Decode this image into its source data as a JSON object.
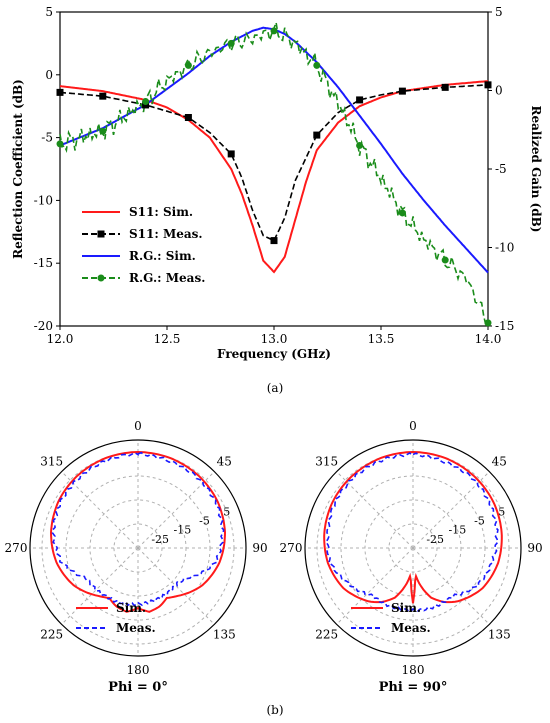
{
  "colors": {
    "sim_s11": "#ff1a1a",
    "meas_s11": "#000000",
    "sim_rg": "#1a1aff",
    "meas_rg": "#1a8c1a",
    "grid": "#b0b0b0"
  },
  "chart_data": [
    {
      "type": "line",
      "panel_label": "(a)",
      "xlabel": "Frequency (GHz)",
      "ylabel": "Reflection Coefficient (dB)",
      "y2label": "Realized Gain (dB)",
      "xlim": [
        12.0,
        14.0
      ],
      "ylim": [
        -20,
        5
      ],
      "y2lim": [
        -15,
        5
      ],
      "xticks": [
        "12.0",
        "12.5",
        "13.0",
        "13.5",
        "14.0"
      ],
      "yticks": [
        "5",
        "0",
        "-5",
        "-10",
        "-15",
        "-20"
      ],
      "y2ticks": [
        "0",
        "-5",
        "-10",
        "-15"
      ],
      "legend_position": "lower-left",
      "series": [
        {
          "name": "S11: Sim.",
          "axis": "left",
          "style": "solid",
          "x": [
            12.0,
            12.2,
            12.4,
            12.5,
            12.6,
            12.7,
            12.8,
            12.85,
            12.9,
            12.95,
            13.0,
            13.05,
            13.1,
            13.15,
            13.2,
            13.3,
            13.4,
            13.5,
            13.6,
            13.8,
            14.0
          ],
          "values": [
            -0.9,
            -1.3,
            -2.0,
            -2.6,
            -3.6,
            -5.0,
            -7.5,
            -9.5,
            -12.0,
            -14.8,
            -15.7,
            -14.5,
            -11.5,
            -8.5,
            -6.0,
            -3.8,
            -2.5,
            -1.8,
            -1.3,
            -0.8,
            -0.5
          ]
        },
        {
          "name": "S11: Meas.",
          "axis": "left",
          "style": "dashed-square",
          "x": [
            12.0,
            12.2,
            12.4,
            12.5,
            12.6,
            12.7,
            12.8,
            12.85,
            12.9,
            12.95,
            13.0,
            13.05,
            13.1,
            13.2,
            13.3,
            13.4,
            13.5,
            13.6,
            13.8,
            14.0
          ],
          "values": [
            -1.4,
            -1.7,
            -2.4,
            -2.9,
            -3.4,
            -4.6,
            -6.3,
            -8.2,
            -10.8,
            -12.8,
            -13.2,
            -11.4,
            -8.4,
            -4.8,
            -3.0,
            -2.0,
            -1.6,
            -1.3,
            -1.0,
            -0.8
          ],
          "markers_x": [
            12.0,
            12.2,
            12.4,
            12.6,
            12.8,
            13.0,
            13.2,
            13.4,
            13.6,
            13.8,
            14.0
          ]
        },
        {
          "name": "R.G.: Sim.",
          "axis": "right",
          "style": "solid",
          "x": [
            12.0,
            12.2,
            12.4,
            12.6,
            12.7,
            12.8,
            12.9,
            12.95,
            13.0,
            13.05,
            13.1,
            13.2,
            13.3,
            13.4,
            13.5,
            13.6,
            13.7,
            13.8,
            13.9,
            14.0
          ],
          "values": [
            -3.5,
            -2.4,
            -0.9,
            1.1,
            2.2,
            3.1,
            3.8,
            4.0,
            3.9,
            3.6,
            3.1,
            1.8,
            0.2,
            -1.6,
            -3.4,
            -5.3,
            -7.0,
            -8.6,
            -10.1,
            -11.6
          ]
        },
        {
          "name": "R.G.: Meas.",
          "axis": "right",
          "style": "dashed-circle",
          "x": [
            12.0,
            12.1,
            12.2,
            12.3,
            12.4,
            12.5,
            12.6,
            12.7,
            12.8,
            12.9,
            12.95,
            13.0,
            13.05,
            13.1,
            13.2,
            13.3,
            13.4,
            13.5,
            13.6,
            13.7,
            13.8,
            13.9,
            14.0
          ],
          "values": [
            -3.4,
            -3.0,
            -2.6,
            -1.7,
            -0.7,
            0.6,
            1.6,
            2.4,
            3.0,
            3.3,
            3.6,
            3.8,
            3.5,
            3.0,
            1.6,
            -0.8,
            -3.5,
            -5.6,
            -7.8,
            -9.5,
            -10.8,
            -12.0,
            -14.8
          ],
          "markers_x": [
            12.0,
            12.2,
            12.4,
            12.6,
            12.8,
            13.0,
            13.2,
            13.4,
            13.6,
            13.8,
            14.0
          ]
        }
      ]
    },
    {
      "type": "polar",
      "panel_label": "(b)",
      "title": "Phi = 0°",
      "angle_labels": [
        "0",
        "45",
        "90",
        "135",
        "180",
        "225",
        "270",
        "315"
      ],
      "radial_ticks": [
        "-25",
        "-15",
        "-5",
        "5"
      ],
      "rlim": [
        -35,
        10
      ],
      "legend_position": "lower-left",
      "series": [
        {
          "name": "Sim.",
          "style": "solid",
          "angles": [
            0,
            20,
            40,
            60,
            80,
            100,
            120,
            140,
            150,
            160,
            170,
            180,
            190,
            200,
            210,
            220,
            240,
            260,
            280,
            300,
            320,
            340
          ],
          "values": [
            5,
            4.8,
            4.3,
            3.4,
            1.8,
            -0.5,
            -4.0,
            -9.0,
            -11.0,
            -9.0,
            -8.0,
            -10.0,
            -8.0,
            -9.0,
            -11.0,
            -9.0,
            -4.0,
            -0.5,
            1.8,
            3.4,
            4.3,
            4.8
          ]
        },
        {
          "name": "Meas.",
          "style": "dashed",
          "angles": [
            0,
            20,
            40,
            60,
            80,
            100,
            115,
            120,
            130,
            240,
            245,
            260,
            280,
            300,
            320,
            340
          ],
          "values": [
            4.2,
            3.5,
            3.4,
            2.6,
            0.8,
            -2.0,
            -8.0,
            -10.5,
            -13.0,
            -10.0,
            -8.0,
            -2.5,
            0.8,
            2.5,
            3.2,
            3.8
          ]
        }
      ]
    },
    {
      "type": "polar",
      "panel_label": "(b)",
      "title": "Phi = 90°",
      "angle_labels": [
        "0",
        "45",
        "90",
        "135",
        "180",
        "225",
        "270",
        "315"
      ],
      "radial_ticks": [
        "-25",
        "-15",
        "-5",
        "5"
      ],
      "rlim": [
        -35,
        10
      ],
      "legend_position": "lower-left",
      "series": [
        {
          "name": "Sim.",
          "style": "solid",
          "angles": [
            0,
            20,
            40,
            60,
            80,
            100,
            120,
            140,
            150,
            160,
            170,
            175,
            180,
            185,
            190,
            200,
            210,
            220,
            240,
            260,
            280,
            300,
            320,
            340
          ],
          "values": [
            5,
            4.8,
            4.3,
            3.6,
            2.5,
            1.0,
            -1.5,
            -6.0,
            -9.0,
            -13.0,
            -20.0,
            -24.0,
            -12.0,
            -24.0,
            -20.0,
            -13.0,
            -9.0,
            -6.0,
            -1.5,
            1.0,
            2.5,
            3.6,
            4.3,
            4.8
          ]
        },
        {
          "name": "Meas.",
          "style": "dashed",
          "angles": [
            0,
            20,
            40,
            60,
            80,
            100,
            120,
            140,
            220,
            240,
            260,
            280,
            300,
            320,
            340
          ],
          "values": [
            4.0,
            3.2,
            3.2,
            2.0,
            0.5,
            -1.5,
            -4.0,
            -9.0,
            -9.0,
            -4.5,
            0.0,
            1.0,
            2.6,
            3.4,
            3.8
          ]
        }
      ]
    }
  ]
}
